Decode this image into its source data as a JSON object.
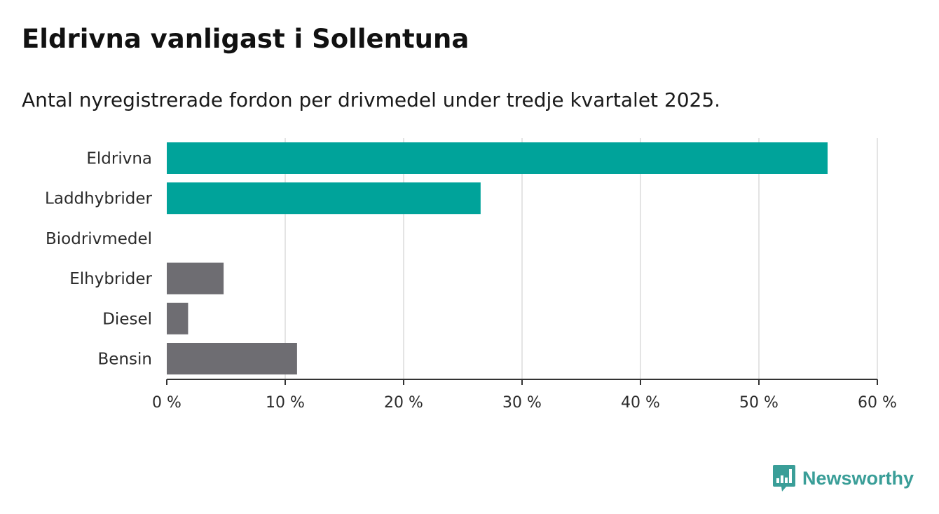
{
  "title": "Eldrivna vanligast i Sollentuna",
  "subtitle": "Antal nyregistrerade fordon per drivmedel under tredje kvartalet 2025.",
  "brand": {
    "name": "Newsworthy",
    "icon": "newsworthy-logo-icon",
    "color": "#3a9e98"
  },
  "chart_data": {
    "type": "bar",
    "orientation": "horizontal",
    "categories": [
      "Eldrivna",
      "Laddhybrider",
      "Biodrivmedel",
      "Elhybrider",
      "Diesel",
      "Bensin"
    ],
    "values": [
      55.8,
      26.5,
      0,
      4.8,
      1.8,
      11.0
    ],
    "colors": [
      "#00a39a",
      "#00a39a",
      "#00a39a",
      "#6e6d72",
      "#6e6d72",
      "#6e6d72"
    ],
    "xlim": [
      0,
      60
    ],
    "xticks": [
      0,
      10,
      20,
      30,
      40,
      50,
      60
    ],
    "xtick_labels": [
      "0 %",
      "10 %",
      "20 %",
      "30 %",
      "40 %",
      "50 %",
      "60 %"
    ],
    "grid": true
  }
}
